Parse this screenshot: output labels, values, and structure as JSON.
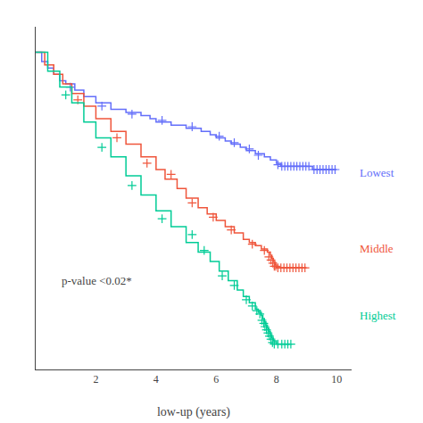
{
  "chart_data": {
    "type": "step",
    "xlabel": "low-up (years)",
    "xlim": [
      0,
      10.5
    ],
    "ylim": [
      0.0,
      1.08
    ],
    "xticks": [
      2,
      4,
      6,
      8,
      10
    ],
    "tick_labels": "x",
    "grid": false,
    "annotations": [
      {
        "text": "p-value <0.02*",
        "x": 0.8,
        "y": 0.28
      }
    ],
    "series": [
      {
        "name": "Lowest",
        "label_y": 0.62,
        "marker": "+",
        "x": [
          0,
          0.2,
          0.4,
          0.6,
          0.8,
          1.0,
          1.3,
          1.6,
          2.0,
          2.5,
          3.0,
          3.5,
          3.8,
          4.0,
          4.5,
          5.0,
          5.5,
          5.8,
          6.0,
          6.3,
          6.5,
          6.8,
          7.0,
          7.3,
          7.6,
          7.8,
          8.0,
          8.15,
          8.25,
          8.35,
          8.45,
          8.55,
          8.65,
          8.75,
          8.85,
          8.95,
          9.05,
          9.2,
          9.3,
          9.4,
          9.5,
          9.6,
          9.7,
          9.8,
          9.9,
          10.0
        ],
        "values": [
          1.0,
          0.97,
          0.95,
          0.93,
          0.91,
          0.9,
          0.88,
          0.86,
          0.84,
          0.82,
          0.81,
          0.8,
          0.79,
          0.78,
          0.77,
          0.76,
          0.75,
          0.74,
          0.73,
          0.72,
          0.71,
          0.7,
          0.69,
          0.68,
          0.67,
          0.66,
          0.65,
          0.64,
          0.64,
          0.64,
          0.64,
          0.64,
          0.64,
          0.64,
          0.64,
          0.64,
          0.64,
          0.63,
          0.63,
          0.63,
          0.63,
          0.63,
          0.63,
          0.63,
          0.63,
          0.63
        ],
        "censor_x": [
          1.15,
          2.2,
          3.2,
          4.2,
          5.2,
          6.1,
          6.6,
          7.1,
          7.4,
          8.05,
          8.18,
          8.28,
          8.38,
          8.48,
          8.58,
          8.68,
          8.78,
          8.88,
          8.98,
          9.08,
          9.25,
          9.35,
          9.45,
          9.55,
          9.65,
          9.75,
          9.85,
          9.95
        ],
        "censor_values": [
          0.89,
          0.83,
          0.805,
          0.785,
          0.765,
          0.735,
          0.715,
          0.695,
          0.675,
          0.645,
          0.64,
          0.64,
          0.64,
          0.64,
          0.64,
          0.64,
          0.64,
          0.64,
          0.64,
          0.64,
          0.63,
          0.63,
          0.63,
          0.63,
          0.63,
          0.63,
          0.63,
          0.63
        ]
      },
      {
        "name": "Middle",
        "label_y": 0.38,
        "marker": "+",
        "x": [
          0,
          0.3,
          0.6,
          0.9,
          1.2,
          1.6,
          2.0,
          2.5,
          3.0,
          3.5,
          4.0,
          4.3,
          4.7,
          5.0,
          5.4,
          5.7,
          6.0,
          6.3,
          6.6,
          6.9,
          7.1,
          7.3,
          7.5,
          7.7,
          7.8,
          7.85,
          7.9,
          7.95,
          8.0,
          8.1,
          8.2,
          8.3,
          8.4,
          8.5,
          8.6,
          8.7,
          8.8,
          8.9,
          9.0
        ],
        "values": [
          1.0,
          0.96,
          0.93,
          0.9,
          0.87,
          0.83,
          0.79,
          0.75,
          0.71,
          0.67,
          0.63,
          0.6,
          0.57,
          0.54,
          0.51,
          0.49,
          0.47,
          0.45,
          0.43,
          0.41,
          0.4,
          0.39,
          0.38,
          0.37,
          0.36,
          0.35,
          0.34,
          0.33,
          0.32,
          0.32,
          0.32,
          0.32,
          0.32,
          0.32,
          0.32,
          0.32,
          0.32,
          0.32,
          0.32
        ],
        "censor_x": [
          1.4,
          2.7,
          3.7,
          4.5,
          5.2,
          5.9,
          6.5,
          7.2,
          7.6,
          7.75,
          7.82,
          7.88,
          7.93,
          7.98,
          8.05,
          8.15,
          8.25,
          8.35,
          8.45,
          8.55,
          8.65,
          8.75,
          8.85,
          8.95
        ],
        "censor_values": [
          0.85,
          0.73,
          0.65,
          0.615,
          0.525,
          0.48,
          0.44,
          0.395,
          0.375,
          0.355,
          0.345,
          0.335,
          0.325,
          0.325,
          0.32,
          0.32,
          0.32,
          0.32,
          0.32,
          0.32,
          0.32,
          0.32,
          0.32,
          0.32
        ]
      },
      {
        "name": "Highest",
        "label_y": 0.17,
        "marker": "+",
        "x": [
          0,
          0.4,
          0.8,
          1.2,
          1.6,
          2.0,
          2.5,
          3.0,
          3.5,
          4.0,
          4.5,
          5.0,
          5.4,
          5.8,
          6.1,
          6.4,
          6.7,
          6.9,
          7.1,
          7.3,
          7.4,
          7.5,
          7.55,
          7.6,
          7.65,
          7.7,
          7.75,
          7.8,
          7.85,
          7.9,
          8.0,
          8.15,
          8.25,
          8.35,
          8.45
        ],
        "values": [
          1.0,
          0.94,
          0.89,
          0.84,
          0.78,
          0.73,
          0.67,
          0.61,
          0.55,
          0.5,
          0.45,
          0.4,
          0.37,
          0.34,
          0.31,
          0.28,
          0.25,
          0.23,
          0.21,
          0.19,
          0.18,
          0.17,
          0.16,
          0.15,
          0.14,
          0.13,
          0.12,
          0.11,
          0.1,
          0.09,
          0.08,
          0.08,
          0.08,
          0.08,
          0.08
        ],
        "censor_x": [
          1.0,
          2.2,
          3.2,
          4.2,
          5.2,
          5.6,
          6.2,
          6.6,
          7.0,
          7.2,
          7.35,
          7.45,
          7.52,
          7.58,
          7.62,
          7.67,
          7.72,
          7.77,
          7.82,
          7.87,
          7.93,
          8.05,
          8.18,
          8.28,
          8.38,
          8.48
        ],
        "censor_values": [
          0.865,
          0.7,
          0.58,
          0.475,
          0.425,
          0.375,
          0.295,
          0.265,
          0.22,
          0.2,
          0.185,
          0.175,
          0.155,
          0.145,
          0.135,
          0.125,
          0.115,
          0.105,
          0.095,
          0.085,
          0.08,
          0.08,
          0.08,
          0.08,
          0.08,
          0.08
        ]
      }
    ]
  }
}
